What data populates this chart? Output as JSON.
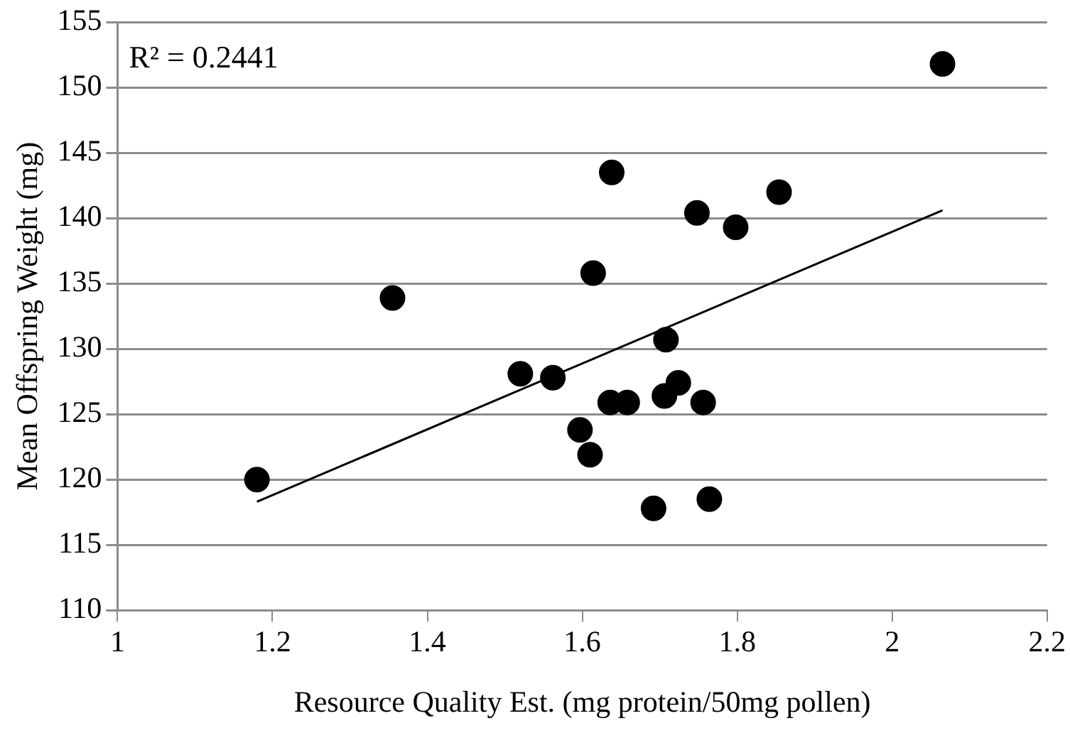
{
  "chart_data": {
    "type": "scatter",
    "xlabel": "Resource Quality Est. (mg protein/50mg pollen)",
    "ylabel": "Mean Offspring Weight (mg)",
    "x": [
      1.18,
      1.355,
      1.52,
      1.562,
      1.597,
      1.61,
      1.614,
      1.636,
      1.638,
      1.658,
      1.692,
      1.706,
      1.708,
      1.724,
      1.748,
      1.756,
      1.764,
      1.798,
      1.854,
      2.065
    ],
    "series": [
      {
        "color": "#000000",
        "values": [
          120,
          133.9,
          128.1,
          127.8,
          123.8,
          121.9,
          135.8,
          125.9,
          143.5,
          125.9,
          117.8,
          126.4,
          130.7,
          127.4,
          140.4,
          125.9,
          118.5,
          139.3,
          142,
          151.8
        ]
      },
      {
        "type": "line",
        "color": "#000000",
        "x": [
          1.18,
          2.065
        ],
        "values": [
          118.3,
          140.6
        ],
        "marker": "none"
      }
    ],
    "xlim": [
      1,
      2.2
    ],
    "xticks": [
      1,
      1.2,
      1.4,
      1.6,
      1.8,
      2,
      2.2
    ],
    "ylim": [
      110,
      155
    ],
    "yticks": [
      110,
      115,
      120,
      125,
      130,
      135,
      140,
      145,
      150,
      155
    ],
    "grid": "y",
    "legend": false,
    "marker": "circle",
    "annotations": [
      "R² = 0.2441"
    ]
  }
}
